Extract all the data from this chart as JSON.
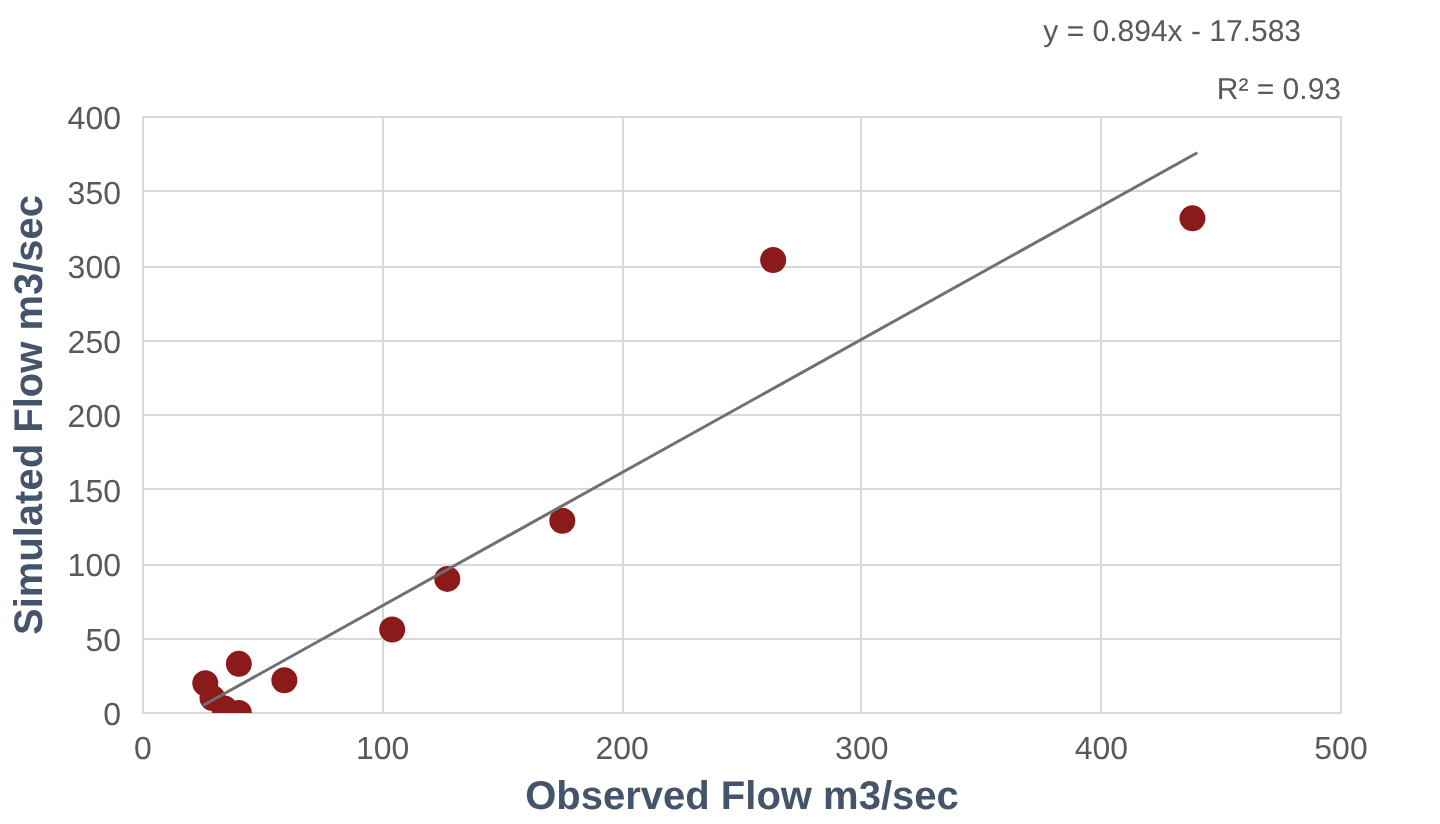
{
  "chart_data": {
    "type": "scatter",
    "xlabel": "Observed Flow m3/sec",
    "ylabel": "Simulated Flow m3/sec",
    "annotations": [
      "y = 0.894x - 17.583",
      "R² = 0.93"
    ],
    "xlim": [
      0,
      500
    ],
    "xticks": [
      0,
      100,
      200,
      300,
      400,
      500
    ],
    "ylim": [
      0,
      400
    ],
    "yticks": [
      0,
      50,
      100,
      150,
      200,
      250,
      300,
      350,
      400
    ],
    "grid": true,
    "series": [
      {
        "color": "#8b1a1a",
        "marker": "circle",
        "x": [
          26,
          29,
          34,
          40,
          40,
          59,
          104,
          127,
          175,
          263,
          438
        ],
        "values": [
          20,
          10,
          3,
          0,
          33,
          22,
          56,
          90,
          129,
          304,
          332
        ]
      },
      {
        "type": "line",
        "color": "#707070",
        "line_style": "solid",
        "marker": "none",
        "x": [
          25,
          440
        ],
        "values": [
          5,
          376
        ]
      }
    ]
  }
}
